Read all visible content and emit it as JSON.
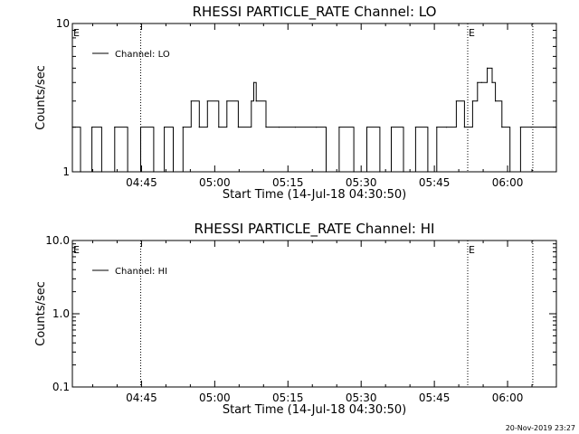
{
  "chart_data": [
    {
      "type": "line",
      "title": "RHESSI PARTICLE_RATE Channel: LO",
      "xlabel": "Start Time (14-Jul-18 04:30:50)",
      "ylabel": "Counts/sec",
      "yscale": "log",
      "xlim": [
        "04:30:50",
        "06:10:00"
      ],
      "ylim": [
        1,
        10
      ],
      "xticks": [
        "04:45",
        "05:00",
        "05:15",
        "05:30",
        "05:45",
        "06:00"
      ],
      "yticks": [
        "1",
        "10"
      ],
      "legend": {
        "label": "Channel: LO",
        "placement": "top-left"
      },
      "event_lines": [
        {
          "time": "04:44:50",
          "label": ""
        },
        {
          "time": "05:51:50",
          "label": "E"
        },
        {
          "time": "06:05:10",
          "label": ""
        }
      ],
      "left_marker": "E",
      "series": [
        {
          "name": "Channel: LO",
          "x": [
            "04:30:50",
            "04:32:30",
            "04:34:50",
            "04:36:50",
            "04:39:30",
            "04:42:10",
            "04:44:50",
            "04:47:30",
            "04:49:40",
            "04:51:30",
            "04:53:30",
            "04:55:10",
            "04:56:50",
            "04:58:30",
            "05:00:50",
            "05:02:30",
            "05:04:50",
            "05:07:30",
            "05:08:00",
            "05:08:30",
            "05:10:30",
            "05:13:10",
            "05:16:30",
            "05:20:50",
            "05:22:50",
            "05:25:30",
            "05:28:30",
            "05:31:10",
            "05:33:50",
            "05:36:10",
            "05:38:40",
            "05:41:10",
            "05:43:40",
            "05:45:30",
            "05:47:30",
            "05:49:30",
            "05:51:10",
            "05:52:50",
            "05:53:50",
            "05:54:40",
            "05:55:50",
            "05:56:50",
            "05:57:30",
            "05:58:50",
            "06:00:30",
            "06:02:40",
            "06:04:50"
          ],
          "values": [
            2,
            1,
            2,
            1,
            2,
            1,
            2,
            1,
            2,
            1,
            2,
            3,
            2,
            3,
            2,
            3,
            2,
            3,
            4,
            3,
            2,
            2,
            2,
            2,
            1,
            2,
            1,
            2,
            1,
            2,
            1,
            2,
            1,
            2,
            2,
            3,
            2,
            3,
            4,
            4,
            5,
            4,
            3,
            2,
            1,
            2,
            2
          ]
        }
      ]
    },
    {
      "type": "line",
      "title": "RHESSI PARTICLE_RATE Channel: HI",
      "xlabel": "Start Time (14-Jul-18 04:30:50)",
      "ylabel": "Counts/sec",
      "yscale": "log",
      "xlim": [
        "04:30:50",
        "06:10:00"
      ],
      "ylim": [
        0.1,
        10
      ],
      "xticks": [
        "04:45",
        "05:00",
        "05:15",
        "05:30",
        "05:45",
        "06:00"
      ],
      "yticks": [
        "0.1",
        "1.0",
        "10.0"
      ],
      "legend": {
        "label": "Channel: HI",
        "placement": "top-left"
      },
      "event_lines": [
        {
          "time": "04:44:50",
          "label": ""
        },
        {
          "time": "05:51:50",
          "label": "E"
        },
        {
          "time": "06:05:10",
          "label": ""
        }
      ],
      "left_marker": "E",
      "series": [
        {
          "name": "Channel: HI",
          "x": [],
          "values": []
        }
      ]
    }
  ],
  "footer": {
    "timestamp": "20-Nov-2019 23:27"
  }
}
